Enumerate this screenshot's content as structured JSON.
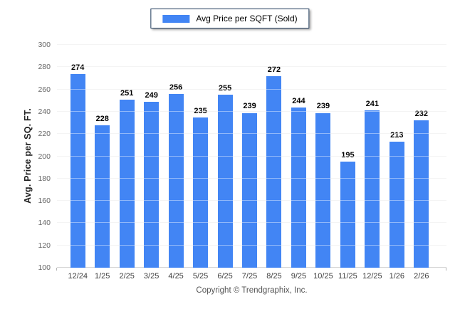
{
  "legend": {
    "label": "Avg Price per SQFT (Sold)"
  },
  "footer": {
    "copyright": "Copyright © Trendgraphix, Inc."
  },
  "colors": {
    "bar": "#4285F4",
    "legend_border": "#1F3B5C",
    "grid": "#EDEDED",
    "axis_line": "#D5D5D5",
    "y_tick_text": "#666666",
    "x_tick_text": "#404040",
    "value_label_text": "#000000",
    "footer_text": "#555555"
  },
  "chart_data": {
    "type": "bar",
    "title": "",
    "categories": [
      "12/24",
      "1/25",
      "2/25",
      "3/25",
      "4/25",
      "5/25",
      "6/25",
      "7/25",
      "8/25",
      "9/25",
      "10/25",
      "11/25",
      "12/25",
      "1/26",
      "2/26"
    ],
    "series": [
      {
        "name": "Avg Price per SQFT (Sold)",
        "values": [
          274,
          228,
          251,
          249,
          256,
          235,
          255,
          239,
          272,
          244,
          239,
          195,
          241,
          213,
          232
        ]
      }
    ],
    "xlabel": "",
    "ylabel": "Avg. Price per SQ. FT.",
    "ylim": [
      100,
      300
    ],
    "ytick_step": 20,
    "yticks": [
      100,
      120,
      140,
      160,
      180,
      200,
      220,
      240,
      260,
      280,
      300
    ],
    "grid": true,
    "value_labels": true,
    "legend_position": "top-center"
  }
}
